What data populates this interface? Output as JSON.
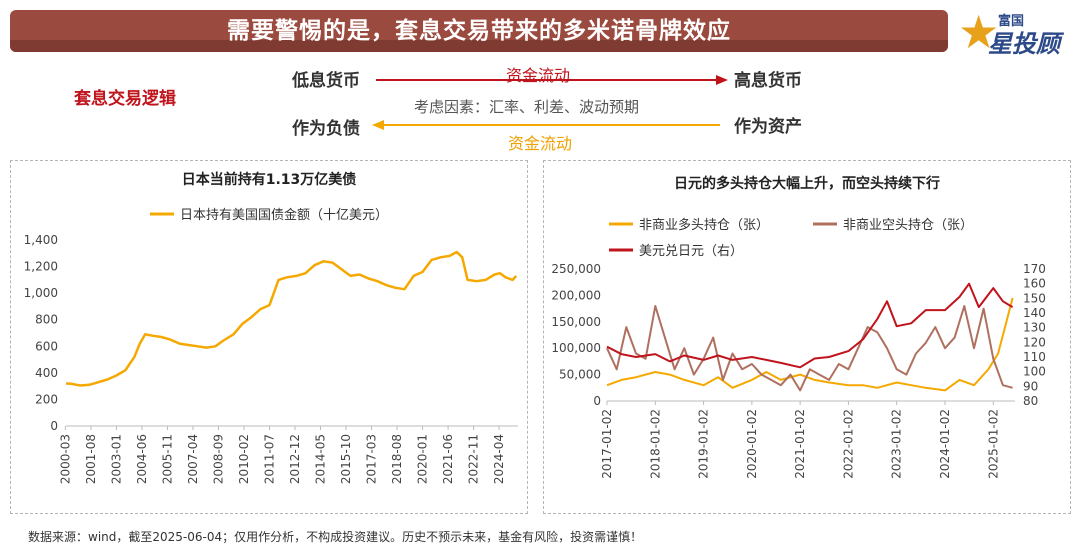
{
  "header": {
    "title": "需要警惕的是，套息交易带来的多米诺骨牌效应",
    "logo_small": "富国",
    "logo_big": "星投顾"
  },
  "logic": {
    "label": "套息交易逻辑",
    "low_currency": "低息货币",
    "high_currency": "高息货币",
    "flow_top": "资金流动",
    "factors": "考虑因素：汇率、利差、波动预期",
    "liability": "作为负债",
    "asset": "作为资产",
    "flow_bottom": "资金流动"
  },
  "colors": {
    "banner": "#9b4a3f",
    "red": "#c0141c",
    "orange": "#f5a800",
    "brown": "#b07060"
  },
  "footer": "数据来源：wind，截至2025-06-04；仅用作分析，不构成投资建议。历史不预示未来，基金有风险，投资需谨慎！",
  "chart_data": [
    {
      "type": "line",
      "title": "日本当前持有1.13万亿美债",
      "xlabel": "",
      "ylabel": "",
      "ylim": [
        0,
        1400
      ],
      "yticks": [
        "0",
        "200",
        "400",
        "600",
        "800",
        "1,000",
        "1,200",
        "1,400"
      ],
      "xticks": [
        "2000-03",
        "2001-08",
        "2003-01",
        "2004-06",
        "2005-11",
        "2007-04",
        "2008-09",
        "2010-02",
        "2011-07",
        "2012-12",
        "2014-05",
        "2015-10",
        "2017-03",
        "2018-08",
        "2020-01",
        "2021-06",
        "2022-11",
        "2024-04"
      ],
      "series": [
        {
          "name": "日本持有美国国债金额（十亿美元）",
          "color": "#f5a800",
          "x": [
            2000.2,
            2000.5,
            2001.0,
            2001.5,
            2002.0,
            2002.5,
            2003.0,
            2003.5,
            2004.0,
            2004.3,
            2004.6,
            2005.0,
            2005.5,
            2006.0,
            2006.5,
            2007.0,
            2007.5,
            2008.0,
            2008.5,
            2008.9,
            2009.5,
            2010.0,
            2010.5,
            2011.0,
            2011.5,
            2012.0,
            2012.5,
            2013.0,
            2013.5,
            2014.0,
            2014.5,
            2015.0,
            2015.5,
            2016.0,
            2016.5,
            2017.0,
            2017.5,
            2018.0,
            2018.5,
            2019.0,
            2019.5,
            2020.0,
            2020.5,
            2021.0,
            2021.5,
            2021.9,
            2022.2,
            2022.5,
            2023.0,
            2023.5,
            2024.0,
            2024.3,
            2024.6,
            2025.0,
            2025.2
          ],
          "values": [
            320,
            318,
            305,
            310,
            330,
            350,
            380,
            420,
            520,
            620,
            690,
            680,
            670,
            650,
            620,
            610,
            600,
            590,
            600,
            640,
            690,
            770,
            820,
            880,
            910,
            1100,
            1120,
            1130,
            1150,
            1210,
            1240,
            1230,
            1180,
            1130,
            1140,
            1110,
            1090,
            1060,
            1040,
            1030,
            1130,
            1160,
            1250,
            1270,
            1280,
            1310,
            1270,
            1100,
            1090,
            1100,
            1140,
            1150,
            1120,
            1100,
            1130
          ]
        }
      ]
    },
    {
      "type": "line",
      "title": "日元的多头持仓大幅上升，而空头持续下行",
      "xlabel": "",
      "ylabel": "",
      "ylim": [
        0,
        250000
      ],
      "y2lim": [
        80,
        170
      ],
      "yticks": [
        "0",
        "50,000",
        "100,000",
        "150,000",
        "200,000",
        "250,000"
      ],
      "y2ticks": [
        "80",
        "90",
        "100",
        "110",
        "120",
        "130",
        "140",
        "150",
        "160",
        "170"
      ],
      "xticks": [
        "2017-01-02",
        "2018-01-02",
        "2019-01-02",
        "2020-01-02",
        "2021-01-02",
        "2022-01-02",
        "2023-01-02",
        "2024-01-02",
        "2025-01-02"
      ],
      "series": [
        {
          "name": "非商业多头持仓（张）",
          "color": "#f5a800",
          "axis": "left",
          "x": [
            2017.0,
            2017.3,
            2017.6,
            2018.0,
            2018.3,
            2018.6,
            2019.0,
            2019.3,
            2019.6,
            2020.0,
            2020.3,
            2020.6,
            2021.0,
            2021.3,
            2021.6,
            2022.0,
            2022.3,
            2022.6,
            2023.0,
            2023.3,
            2023.6,
            2024.0,
            2024.3,
            2024.6,
            2024.9,
            2025.1,
            2025.3,
            2025.4
          ],
          "values": [
            30000,
            40000,
            45000,
            55000,
            50000,
            40000,
            30000,
            45000,
            25000,
            40000,
            55000,
            40000,
            50000,
            40000,
            35000,
            30000,
            30000,
            25000,
            35000,
            30000,
            25000,
            20000,
            40000,
            30000,
            60000,
            90000,
            160000,
            195000
          ]
        },
        {
          "name": "非商业空头持仓（张）",
          "color": "#b07060",
          "axis": "left",
          "x": [
            2017.0,
            2017.2,
            2017.4,
            2017.6,
            2017.8,
            2018.0,
            2018.2,
            2018.4,
            2018.6,
            2018.8,
            2019.0,
            2019.2,
            2019.4,
            2019.6,
            2019.8,
            2020.0,
            2020.2,
            2020.4,
            2020.6,
            2020.8,
            2021.0,
            2021.2,
            2021.4,
            2021.6,
            2021.8,
            2022.0,
            2022.2,
            2022.4,
            2022.6,
            2022.8,
            2023.0,
            2023.2,
            2023.4,
            2023.6,
            2023.8,
            2024.0,
            2024.2,
            2024.4,
            2024.6,
            2024.8,
            2025.0,
            2025.2,
            2025.4
          ],
          "values": [
            100000,
            60000,
            140000,
            90000,
            80000,
            180000,
            120000,
            60000,
            100000,
            50000,
            80000,
            120000,
            40000,
            90000,
            60000,
            70000,
            50000,
            40000,
            30000,
            50000,
            20000,
            60000,
            50000,
            40000,
            70000,
            60000,
            100000,
            140000,
            130000,
            100000,
            60000,
            50000,
            90000,
            110000,
            140000,
            100000,
            120000,
            180000,
            100000,
            175000,
            80000,
            30000,
            25000
          ]
        },
        {
          "name": "美元兑日元（右）",
          "color": "#c0141c",
          "axis": "right",
          "x": [
            2017.0,
            2017.3,
            2017.6,
            2018.0,
            2018.3,
            2018.6,
            2019.0,
            2019.3,
            2019.6,
            2020.0,
            2020.3,
            2020.6,
            2021.0,
            2021.3,
            2021.6,
            2022.0,
            2022.3,
            2022.6,
            2022.8,
            2023.0,
            2023.3,
            2023.6,
            2024.0,
            2024.3,
            2024.5,
            2024.7,
            2025.0,
            2025.2,
            2025.4
          ],
          "values": [
            117,
            112,
            110,
            112,
            107,
            111,
            108,
            111,
            108,
            110,
            108,
            106,
            103,
            109,
            110,
            114,
            122,
            136,
            148,
            131,
            133,
            142,
            142,
            151,
            160,
            144,
            157,
            148,
            144
          ]
        }
      ]
    }
  ]
}
